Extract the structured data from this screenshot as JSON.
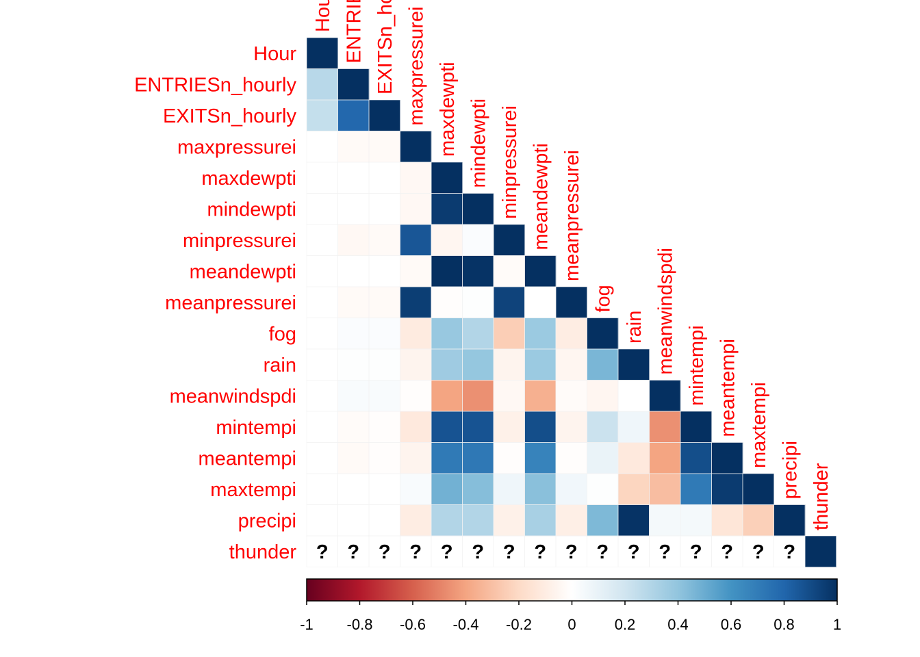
{
  "chart_data": {
    "type": "heatmap",
    "layout": "lower-triangle correlation matrix",
    "variables": [
      "Hour",
      "ENTRIESn_hourly",
      "EXITSn_hourly",
      "maxpressurei",
      "maxdewpti",
      "mindewpti",
      "minpressurei",
      "meandewpti",
      "meanpressurei",
      "fog",
      "rain",
      "meanwindspdi",
      "mintempi",
      "meantempi",
      "maxtempi",
      "precipi",
      "thunder"
    ],
    "matrix": [
      [
        1
      ],
      [
        0.28,
        1
      ],
      [
        0.24,
        0.79,
        1
      ],
      [
        0,
        -0.03,
        -0.03,
        1
      ],
      [
        0,
        0,
        0,
        -0.04,
        1
      ],
      [
        0,
        0,
        0,
        -0.04,
        0.96,
        1
      ],
      [
        0,
        -0.04,
        -0.03,
        0.86,
        -0.05,
        0.02,
        1
      ],
      [
        0,
        0,
        0,
        -0.03,
        1.0,
        0.99,
        -0.02,
        1
      ],
      [
        0,
        -0.03,
        -0.03,
        0.95,
        -0.01,
        0.01,
        0.93,
        0.0,
        1
      ],
      [
        0,
        0.02,
        0.02,
        -0.11,
        0.38,
        0.3,
        -0.25,
        0.37,
        -0.1,
        1
      ],
      [
        0,
        0.01,
        0.01,
        -0.06,
        0.36,
        0.39,
        -0.06,
        0.37,
        -0.05,
        0.46,
        1
      ],
      [
        0,
        0.03,
        0.03,
        -0.01,
        -0.4,
        -0.46,
        -0.04,
        -0.36,
        -0.02,
        -0.05,
        0.0,
        1
      ],
      [
        0,
        -0.02,
        -0.01,
        -0.12,
        0.87,
        0.87,
        -0.08,
        0.89,
        -0.06,
        0.22,
        0.07,
        -0.46,
        1
      ],
      [
        0,
        -0.03,
        -0.01,
        -0.06,
        0.71,
        0.72,
        -0.01,
        0.67,
        -0.01,
        0.09,
        -0.12,
        -0.4,
        0.89,
        1
      ],
      [
        0,
        0,
        0,
        0.03,
        0.48,
        0.43,
        0.07,
        0.42,
        0.06,
        0.01,
        -0.22,
        -0.31,
        0.71,
        0.96,
        1
      ],
      [
        0,
        0,
        0,
        -0.1,
        0.3,
        0.3,
        -0.08,
        0.33,
        -0.09,
        0.45,
        0.99,
        0.05,
        0.05,
        -0.14,
        -0.24,
        1
      ],
      [
        null,
        null,
        null,
        null,
        null,
        null,
        null,
        null,
        null,
        null,
        null,
        null,
        null,
        null,
        null,
        null,
        1
      ]
    ],
    "missing_marker": "?",
    "colorbar": {
      "range": [
        -1,
        1
      ],
      "ticks": [
        "-1",
        "-0.8",
        "-0.6",
        "-0.4",
        "-0.2",
        "0",
        "0.2",
        "0.4",
        "0.6",
        "0.8",
        "1"
      ],
      "palette": [
        "#67001f",
        "#b2182b",
        "#d6604d",
        "#f4a582",
        "#fddbc7",
        "#ffffff",
        "#d1e5f0",
        "#92c5de",
        "#4393c3",
        "#2166ac",
        "#053061"
      ]
    },
    "label_color": "#ff0000"
  }
}
